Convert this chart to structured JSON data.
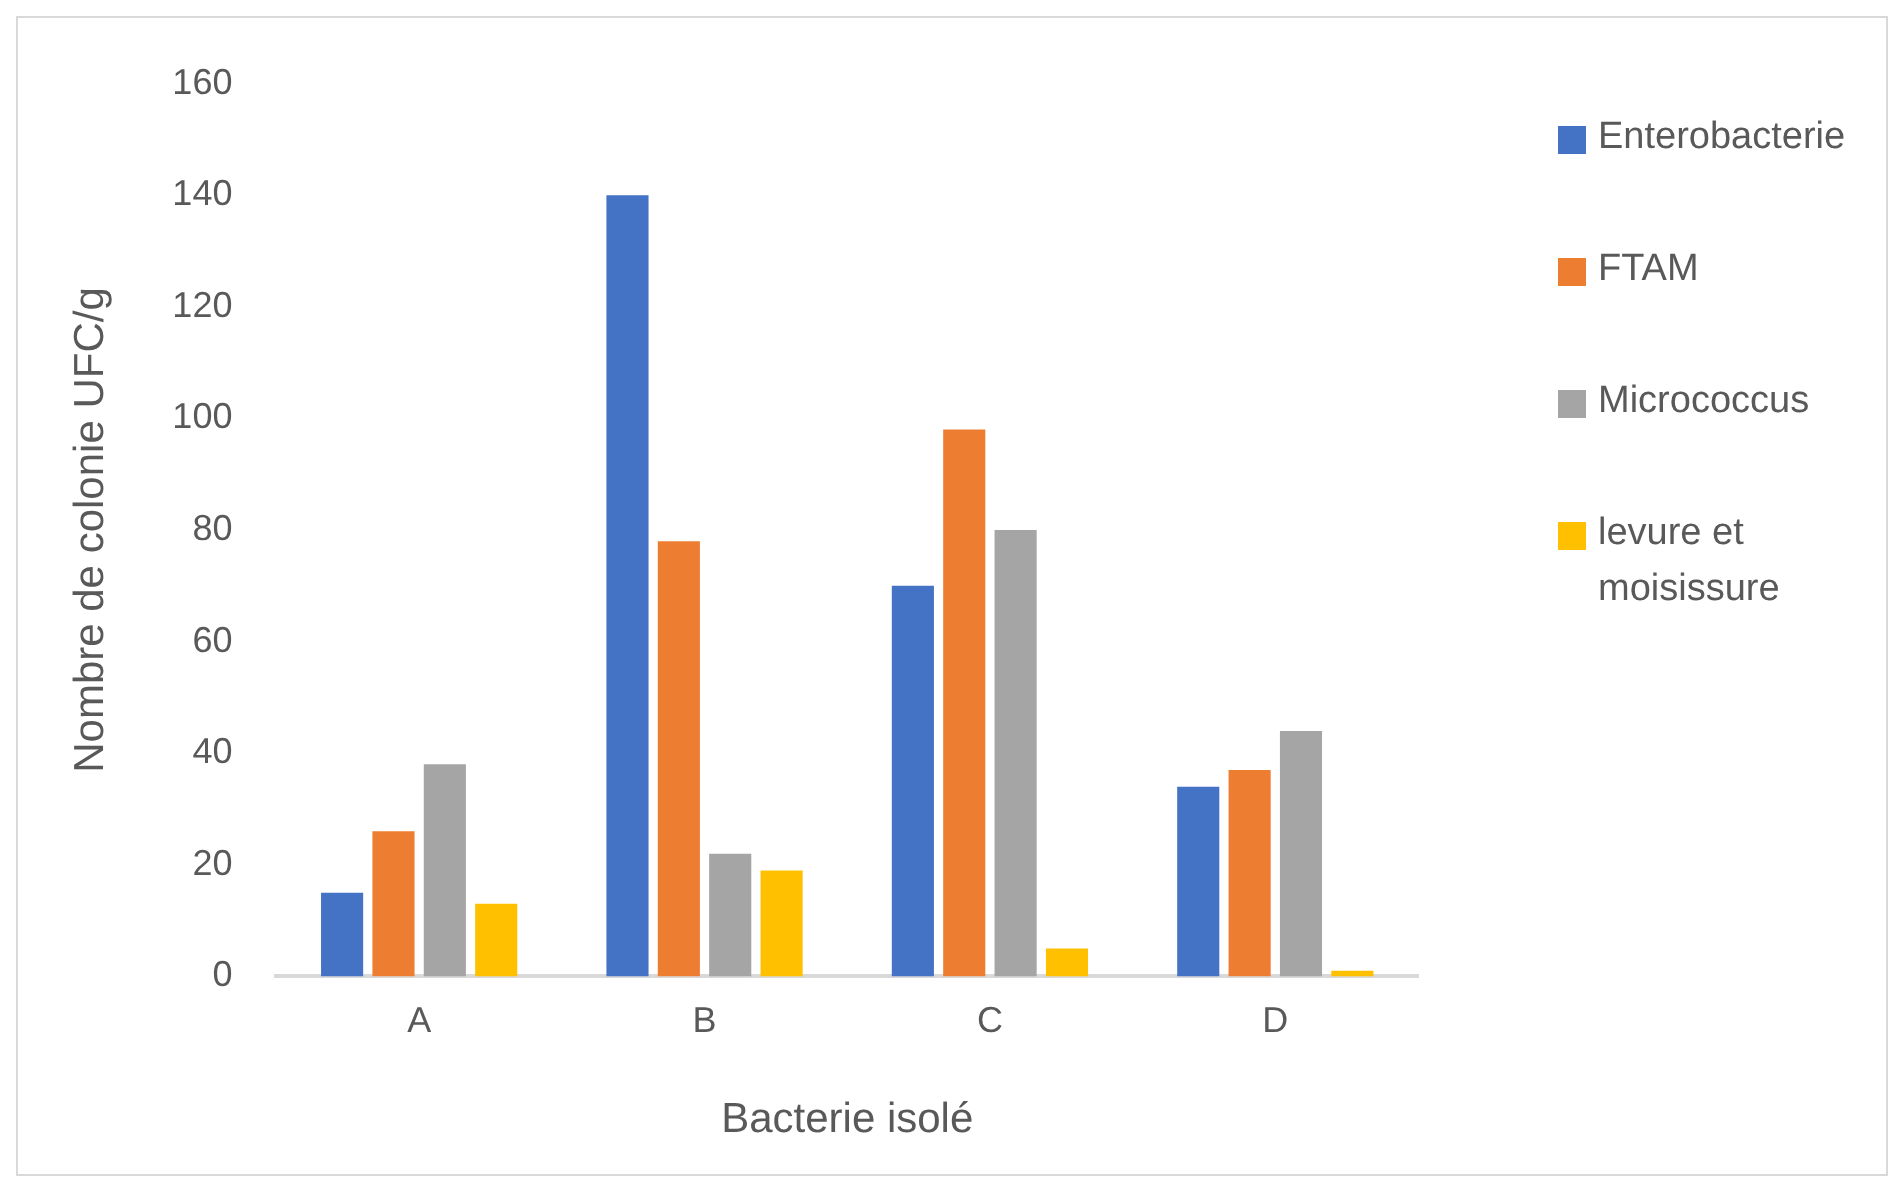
{
  "chart_data": {
    "type": "bar",
    "xlabel": "Bacterie isolé",
    "ylabel": "Nombre de colonie UFC/g",
    "categories": [
      "A",
      "B",
      "C",
      "D"
    ],
    "series": [
      {
        "name": "Enterobacterie",
        "color": "#4472c4",
        "values": [
          15,
          140,
          70,
          34
        ]
      },
      {
        "name": "FTAM",
        "color": "#ed7d31",
        "values": [
          26,
          78,
          98,
          37
        ]
      },
      {
        "name": "Micrococcus",
        "color": "#a5a5a5",
        "values": [
          38,
          22,
          80,
          44
        ]
      },
      {
        "name": "levure et moisissure",
        "color": "#ffc000",
        "values": [
          13,
          19,
          5,
          1
        ]
      }
    ],
    "ylim": [
      0,
      160
    ],
    "yticks": [
      0,
      20,
      40,
      60,
      80,
      100,
      120,
      140,
      160
    ],
    "grid": false,
    "legend": "right"
  }
}
